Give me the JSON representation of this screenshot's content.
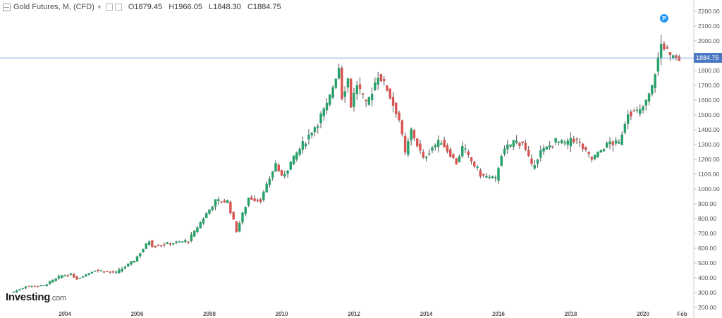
{
  "legend": {
    "title": "Gold Futures, M, (CFD)",
    "caret": "▼",
    "open_label": "O",
    "open": "1879.45",
    "high_label": "H",
    "high": "1966.05",
    "low_label": "L",
    "low": "1848.30",
    "close_label": "C",
    "close": "1884.75"
  },
  "logo": {
    "brand": "Investing",
    "domain": ".com"
  },
  "marker": {
    "label": "P"
  },
  "last_price_label": "1884.75",
  "colors": {
    "up": "#26a069",
    "down": "#d9534f",
    "wick": "#555555",
    "axis_text": "#555555",
    "price_line": "#7fa6e0",
    "tag": "#4a78c2",
    "marker": "#2196f3"
  },
  "chart_data": {
    "type": "candlestick",
    "title": "Gold Futures, M, (CFD)",
    "interval": "monthly",
    "last_price": 1884.75,
    "y_axis": {
      "position": "right",
      "min": 200,
      "max": 2200,
      "ticks": [
        "200.00",
        "300.00",
        "400.00",
        "500.00",
        "600.00",
        "700.00",
        "800.00",
        "900.00",
        "1000.00",
        "1100.00",
        "1200.00",
        "1300.00",
        "1400.00",
        "1500.00",
        "1600.00",
        "1700.00",
        "1800.00",
        "1900.00",
        "2000.00",
        "2100.00",
        "2200.00"
      ]
    },
    "x_axis": {
      "range": [
        "2002-08",
        "2021-04"
      ],
      "ticks": [
        {
          "label": "2004",
          "date": "2004-01"
        },
        {
          "label": "2006",
          "date": "2006-01"
        },
        {
          "label": "2008",
          "date": "2008-01"
        },
        {
          "label": "2010",
          "date": "2010-01"
        },
        {
          "label": "2012",
          "date": "2012-01"
        },
        {
          "label": "2014",
          "date": "2014-01"
        },
        {
          "label": "2016",
          "date": "2016-01"
        },
        {
          "label": "2018",
          "date": "2018-01"
        },
        {
          "label": "2020",
          "date": "2020-01"
        },
        {
          "label": "Feb",
          "date": "2021-02"
        }
      ]
    },
    "grid": false,
    "anchors": [
      {
        "date": "2002-08",
        "price": 305
      },
      {
        "date": "2002-12",
        "price": 342
      },
      {
        "date": "2003-06",
        "price": 348
      },
      {
        "date": "2003-12",
        "price": 415
      },
      {
        "date": "2004-03",
        "price": 423
      },
      {
        "date": "2004-05",
        "price": 393
      },
      {
        "date": "2004-11",
        "price": 452
      },
      {
        "date": "2005-06",
        "price": 434
      },
      {
        "date": "2005-12",
        "price": 517
      },
      {
        "date": "2006-05",
        "price": 650
      },
      {
        "date": "2006-06",
        "price": 615
      },
      {
        "date": "2006-12",
        "price": 632
      },
      {
        "date": "2007-06",
        "price": 650
      },
      {
        "date": "2007-12",
        "price": 834
      },
      {
        "date": "2008-03",
        "price": 915
      },
      {
        "date": "2008-07",
        "price": 915
      },
      {
        "date": "2008-10",
        "price": 716
      },
      {
        "date": "2009-02",
        "price": 940
      },
      {
        "date": "2009-06",
        "price": 926
      },
      {
        "date": "2009-11",
        "price": 1170
      },
      {
        "date": "2010-01",
        "price": 1080
      },
      {
        "date": "2010-06",
        "price": 1240
      },
      {
        "date": "2010-12",
        "price": 1420
      },
      {
        "date": "2011-04",
        "price": 1560
      },
      {
        "date": "2011-08",
        "price": 1825
      },
      {
        "date": "2011-09",
        "price": 1620
      },
      {
        "date": "2011-11",
        "price": 1745
      },
      {
        "date": "2011-12",
        "price": 1565
      },
      {
        "date": "2012-02",
        "price": 1710
      },
      {
        "date": "2012-05",
        "price": 1560
      },
      {
        "date": "2012-09",
        "price": 1772
      },
      {
        "date": "2012-12",
        "price": 1675
      },
      {
        "date": "2013-04",
        "price": 1470
      },
      {
        "date": "2013-06",
        "price": 1235
      },
      {
        "date": "2013-08",
        "price": 1396
      },
      {
        "date": "2013-12",
        "price": 1202
      },
      {
        "date": "2014-03",
        "price": 1284
      },
      {
        "date": "2014-06",
        "price": 1320
      },
      {
        "date": "2014-11",
        "price": 1175
      },
      {
        "date": "2015-01",
        "price": 1280
      },
      {
        "date": "2015-07",
        "price": 1095
      },
      {
        "date": "2015-12",
        "price": 1062
      },
      {
        "date": "2016-02",
        "price": 1238
      },
      {
        "date": "2016-06",
        "price": 1320
      },
      {
        "date": "2016-09",
        "price": 1315
      },
      {
        "date": "2016-12",
        "price": 1150
      },
      {
        "date": "2017-03",
        "price": 1250
      },
      {
        "date": "2017-08",
        "price": 1320
      },
      {
        "date": "2017-12",
        "price": 1305
      },
      {
        "date": "2018-01",
        "price": 1345
      },
      {
        "date": "2018-03",
        "price": 1325
      },
      {
        "date": "2018-08",
        "price": 1200
      },
      {
        "date": "2018-12",
        "price": 1280
      },
      {
        "date": "2019-02",
        "price": 1315
      },
      {
        "date": "2019-05",
        "price": 1305
      },
      {
        "date": "2019-08",
        "price": 1520
      },
      {
        "date": "2019-12",
        "price": 1520
      },
      {
        "date": "2020-02",
        "price": 1585
      },
      {
        "date": "2020-04",
        "price": 1690
      },
      {
        "date": "2020-07",
        "price": 1975
      },
      {
        "date": "2020-08",
        "price": 1970
      },
      {
        "date": "2020-10",
        "price": 1880
      },
      {
        "date": "2020-12",
        "price": 1895
      },
      {
        "date": "2021-01",
        "price": 1848
      }
    ]
  }
}
